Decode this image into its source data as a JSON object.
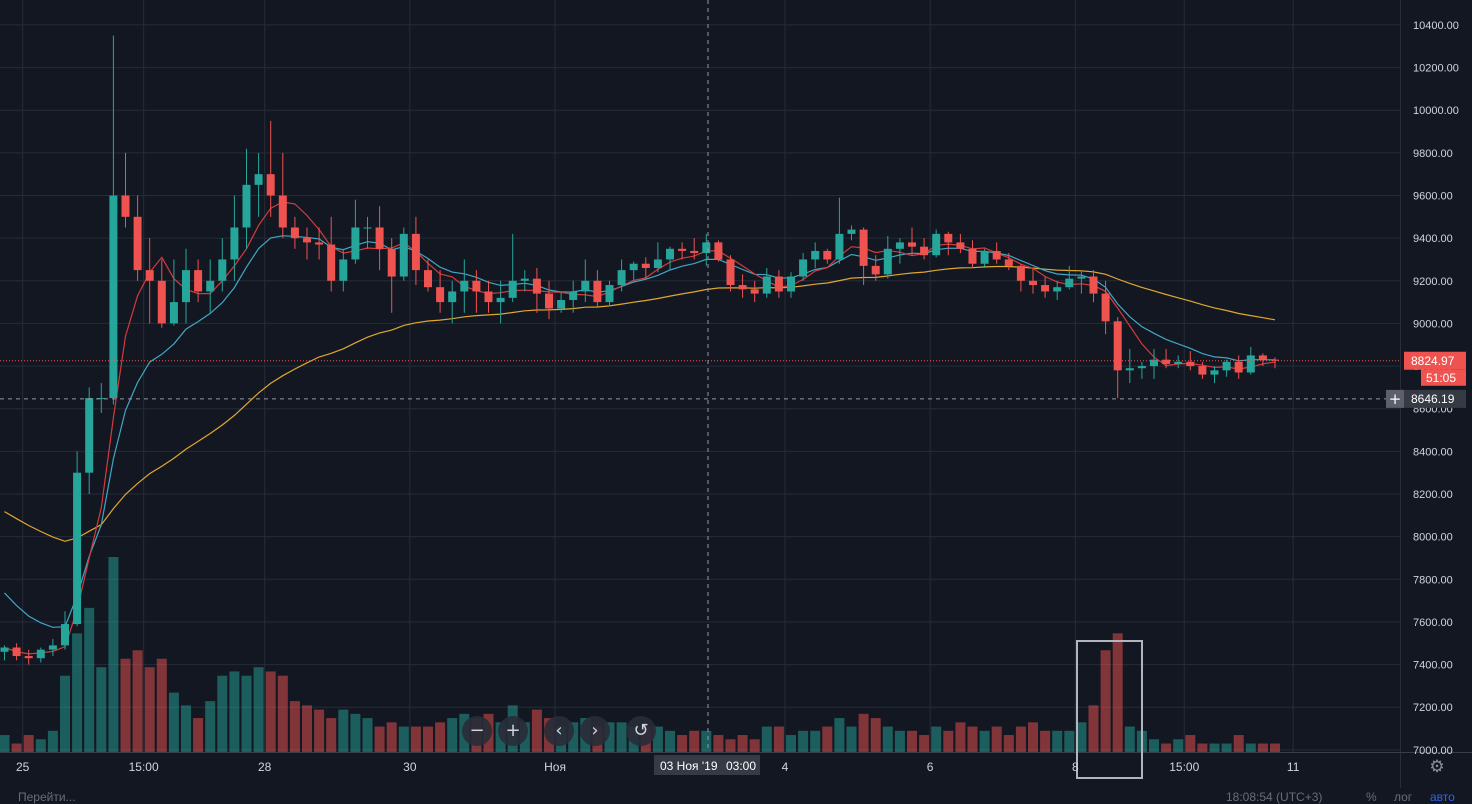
{
  "chart_data": {
    "type": "candlestick",
    "ylim": [
      6990,
      10470
    ],
    "y_ticks": [
      "10400.00",
      "10200.00",
      "10000.00",
      "9800.00",
      "9600.00",
      "9400.00",
      "9200.00",
      "9000.00",
      "8800.00",
      "8600.00",
      "8400.00",
      "8200.00",
      "8000.00",
      "7800.00",
      "7600.00",
      "7400.00",
      "7200.00",
      "7000.00"
    ],
    "x_ticks": [
      {
        "label": "25",
        "index": 1.5
      },
      {
        "label": "15:00",
        "index": 11.5
      },
      {
        "label": "28",
        "index": 21.5
      },
      {
        "label": "30",
        "index": 33.5
      },
      {
        "label": "Ноя",
        "index": 45.5
      },
      {
        "label": "4",
        "index": 64.5
      },
      {
        "label": "6",
        "index": 76.5
      },
      {
        "label": "8",
        "index": 88.5
      },
      {
        "label": "15:00",
        "index": 97.5
      },
      {
        "label": "11",
        "index": 106.5
      }
    ],
    "candles": [
      [
        7460,
        7490,
        7420,
        7480
      ],
      [
        7480,
        7500,
        7420,
        7440
      ],
      [
        7440,
        7470,
        7400,
        7430
      ],
      [
        7430,
        7480,
        7410,
        7470
      ],
      [
        7470,
        7520,
        7440,
        7490
      ],
      [
        7490,
        7650,
        7470,
        7590
      ],
      [
        7590,
        8400,
        7580,
        8300
      ],
      [
        8300,
        8700,
        8200,
        8650
      ],
      [
        8650,
        8720,
        8580,
        8650
      ],
      [
        8650,
        10350,
        8620,
        9600
      ],
      [
        9600,
        9800,
        9450,
        9500
      ],
      [
        9500,
        9600,
        9200,
        9250
      ],
      [
        9250,
        9400,
        9000,
        9200
      ],
      [
        9200,
        9300,
        8980,
        9000
      ],
      [
        9000,
        9300,
        8990,
        9100
      ],
      [
        9100,
        9350,
        9000,
        9250
      ],
      [
        9250,
        9300,
        9100,
        9150
      ],
      [
        9150,
        9300,
        9050,
        9200
      ],
      [
        9200,
        9400,
        9150,
        9300
      ],
      [
        9300,
        9600,
        9200,
        9450
      ],
      [
        9450,
        9820,
        9350,
        9650
      ],
      [
        9650,
        9800,
        9500,
        9700
      ],
      [
        9700,
        9950,
        9500,
        9600
      ],
      [
        9600,
        9800,
        9400,
        9450
      ],
      [
        9450,
        9500,
        9350,
        9400
      ],
      [
        9400,
        9450,
        9300,
        9380
      ],
      [
        9380,
        9450,
        9300,
        9370
      ],
      [
        9370,
        9500,
        9150,
        9200
      ],
      [
        9200,
        9350,
        9150,
        9300
      ],
      [
        9300,
        9580,
        9280,
        9450
      ],
      [
        9450,
        9500,
        9350,
        9450
      ],
      [
        9450,
        9550,
        9250,
        9350
      ],
      [
        9350,
        9400,
        9050,
        9220
      ],
      [
        9220,
        9450,
        9200,
        9420
      ],
      [
        9420,
        9500,
        9180,
        9250
      ],
      [
        9250,
        9300,
        9150,
        9170
      ],
      [
        9170,
        9250,
        9050,
        9100
      ],
      [
        9100,
        9200,
        9000,
        9150
      ],
      [
        9150,
        9300,
        9050,
        9200
      ],
      [
        9200,
        9250,
        9050,
        9150
      ],
      [
        9150,
        9200,
        9050,
        9100
      ],
      [
        9100,
        9200,
        9000,
        9120
      ],
      [
        9120,
        9420,
        9100,
        9200
      ],
      [
        9200,
        9250,
        9150,
        9210
      ],
      [
        9210,
        9260,
        9050,
        9140
      ],
      [
        9140,
        9200,
        9020,
        9070
      ],
      [
        9070,
        9150,
        9050,
        9110
      ],
      [
        9110,
        9200,
        9050,
        9150
      ],
      [
        9150,
        9300,
        9100,
        9200
      ],
      [
        9200,
        9250,
        9080,
        9100
      ],
      [
        9100,
        9200,
        9080,
        9180
      ],
      [
        9180,
        9300,
        9150,
        9250
      ],
      [
        9250,
        9290,
        9200,
        9280
      ],
      [
        9280,
        9310,
        9210,
        9260
      ],
      [
        9260,
        9380,
        9240,
        9300
      ],
      [
        9300,
        9360,
        9250,
        9350
      ],
      [
        9350,
        9380,
        9300,
        9340
      ],
      [
        9340,
        9400,
        9300,
        9330
      ],
      [
        9330,
        9420,
        9270,
        9380
      ],
      [
        9380,
        9390,
        9290,
        9300
      ],
      [
        9300,
        9320,
        9150,
        9180
      ],
      [
        9180,
        9230,
        9120,
        9160
      ],
      [
        9160,
        9200,
        9100,
        9140
      ],
      [
        9140,
        9260,
        9120,
        9220
      ],
      [
        9220,
        9250,
        9120,
        9150
      ],
      [
        9150,
        9240,
        9120,
        9220
      ],
      [
        9220,
        9330,
        9200,
        9300
      ],
      [
        9300,
        9380,
        9260,
        9340
      ],
      [
        9340,
        9350,
        9280,
        9300
      ],
      [
        9300,
        9590,
        9280,
        9420
      ],
      [
        9420,
        9460,
        9390,
        9440
      ],
      [
        9440,
        9450,
        9180,
        9270
      ],
      [
        9270,
        9320,
        9200,
        9230
      ],
      [
        9230,
        9410,
        9210,
        9350
      ],
      [
        9350,
        9400,
        9280,
        9380
      ],
      [
        9380,
        9450,
        9320,
        9360
      ],
      [
        9360,
        9400,
        9300,
        9320
      ],
      [
        9320,
        9440,
        9310,
        9420
      ],
      [
        9420,
        9430,
        9320,
        9380
      ],
      [
        9380,
        9420,
        9330,
        9350
      ],
      [
        9350,
        9390,
        9260,
        9280
      ],
      [
        9280,
        9350,
        9260,
        9340
      ],
      [
        9340,
        9380,
        9280,
        9300
      ],
      [
        9300,
        9330,
        9250,
        9270
      ],
      [
        9270,
        9280,
        9150,
        9200
      ],
      [
        9200,
        9260,
        9140,
        9180
      ],
      [
        9180,
        9220,
        9120,
        9150
      ],
      [
        9150,
        9200,
        9110,
        9170
      ],
      [
        9170,
        9270,
        9160,
        9210
      ],
      [
        9210,
        9250,
        9140,
        9220
      ],
      [
        9220,
        9250,
        9100,
        9140
      ],
      [
        9140,
        9200,
        8950,
        9010
      ],
      [
        9010,
        9030,
        8650,
        8780
      ],
      [
        8780,
        8880,
        8720,
        8790
      ],
      [
        8790,
        8820,
        8740,
        8800
      ],
      [
        8800,
        8880,
        8740,
        8830
      ],
      [
        8830,
        8880,
        8790,
        8810
      ],
      [
        8810,
        8850,
        8790,
        8820
      ],
      [
        8820,
        8870,
        8780,
        8800
      ],
      [
        8800,
        8820,
        8740,
        8760
      ],
      [
        8760,
        8800,
        8720,
        8780
      ],
      [
        8780,
        8830,
        8750,
        8820
      ],
      [
        8820,
        8850,
        8740,
        8770
      ],
      [
        8770,
        8890,
        8760,
        8850
      ],
      [
        8850,
        8860,
        8800,
        8830
      ],
      [
        8830,
        8840,
        8790,
        8825
      ]
    ],
    "volumes": [
      20,
      10,
      20,
      15,
      25,
      90,
      140,
      170,
      100,
      230,
      110,
      120,
      100,
      110,
      70,
      55,
      40,
      60,
      90,
      95,
      90,
      100,
      95,
      90,
      60,
      55,
      50,
      40,
      50,
      45,
      40,
      30,
      35,
      30,
      30,
      30,
      35,
      40,
      45,
      40,
      45,
      35,
      55,
      35,
      50,
      40,
      30,
      35,
      40,
      30,
      35,
      35,
      30,
      30,
      30,
      25,
      20,
      25,
      25,
      20,
      15,
      20,
      15,
      30,
      30,
      20,
      25,
      25,
      30,
      40,
      30,
      45,
      40,
      30,
      25,
      25,
      20,
      30,
      25,
      35,
      30,
      25,
      30,
      20,
      30,
      35,
      25,
      25,
      25,
      35,
      55,
      120,
      140,
      30,
      25,
      15,
      10,
      15,
      20,
      10,
      10,
      10,
      20,
      10,
      10,
      10,
      10
    ],
    "last_price": "8824.97",
    "countdown": "51:05",
    "crosshair_price": "8646.19",
    "crosshair_date": "03 Ноя '19",
    "crosshair_time": "03:00"
  },
  "toolbar": {
    "zoom_out": "−",
    "zoom_in": "+",
    "scroll_left": "‹",
    "scroll_right": "›",
    "reset": "↺"
  },
  "status": {
    "goto": "Перейти...",
    "clock": "18:08:54 (UTC+3)",
    "percent": "%",
    "log": "лог",
    "auto": "авто"
  },
  "colors": {
    "background": "#131722",
    "grid": "#262b38",
    "up": "#26a69a",
    "down": "#ef5350",
    "ma_fast": "#d23c3c",
    "ma_mid": "#3fa7c4",
    "ma_slow": "#e0a72e",
    "axis_text": "#d1d4dc"
  }
}
